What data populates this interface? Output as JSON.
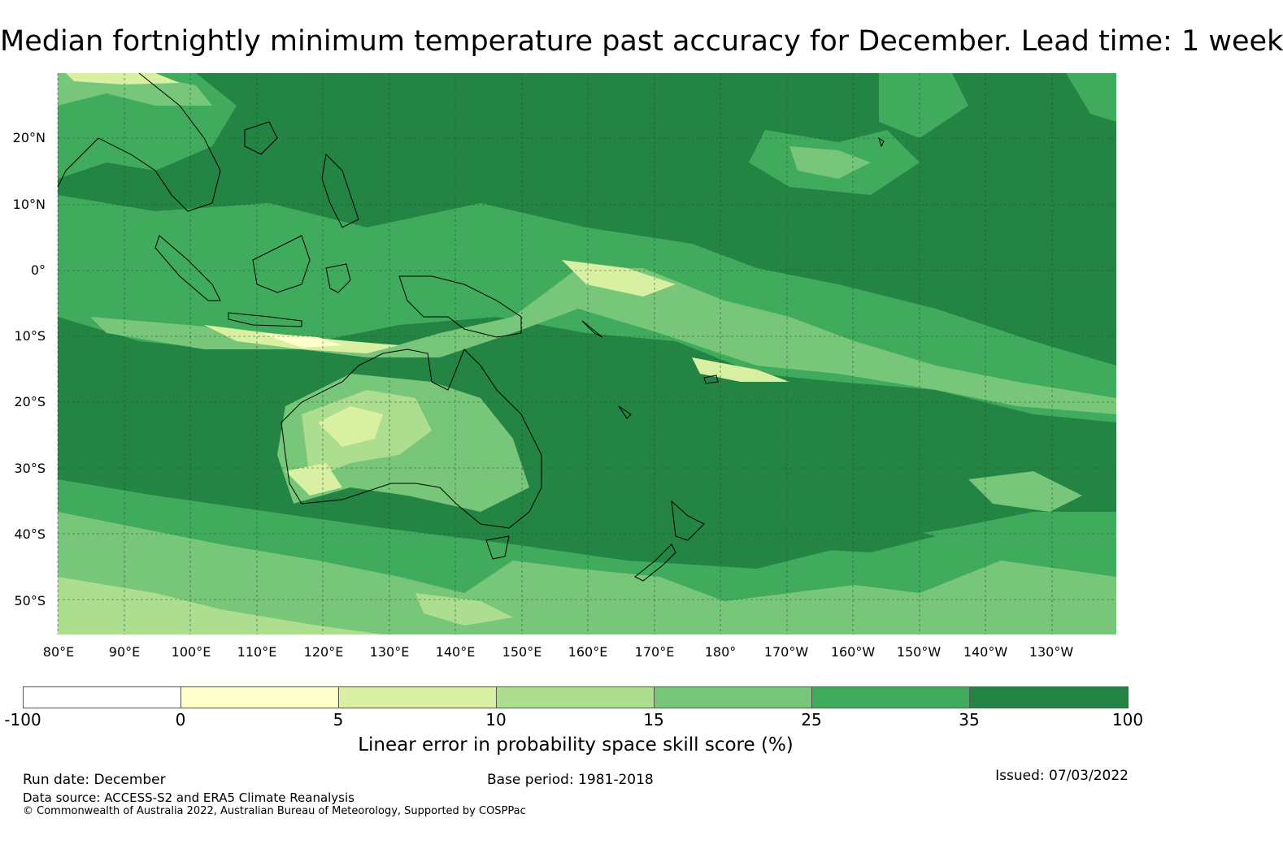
{
  "title": "Median fortnightly minimum temperature past accuracy for December. Lead time: 1 week",
  "map": {
    "lat_labels": [
      "20°N",
      "10°N",
      "0°",
      "10°S",
      "20°S",
      "30°S",
      "40°S",
      "50°S"
    ],
    "lon_labels": [
      "80°E",
      "90°E",
      "100°E",
      "110°E",
      "120°E",
      "130°E",
      "140°E",
      "150°E",
      "160°E",
      "170°E",
      "180°",
      "170°W",
      "160°W",
      "150°W",
      "140°W",
      "130°W"
    ]
  },
  "colorbar": {
    "ticks": [
      "-100",
      "0",
      "5",
      "10",
      "15",
      "25",
      "35",
      "100"
    ],
    "colors": [
      "#ffffff",
      "#ffffcc",
      "#d9f0a3",
      "#addd8e",
      "#78c679",
      "#41ab5d",
      "#238443"
    ],
    "label": "Linear error in probability space skill score (%)"
  },
  "footer": {
    "run_date": "Run date: December",
    "base_period": "Base period: 1981-2018",
    "issued": "Issued: 07/03/2022",
    "data_source": "Data source: ACCESS-S2 and ERA5 Climate Reanalysis",
    "copyright": "© Commonwealth of Australia 2022, Australian Bureau of Meteorology, Supported by COSPPac"
  }
}
